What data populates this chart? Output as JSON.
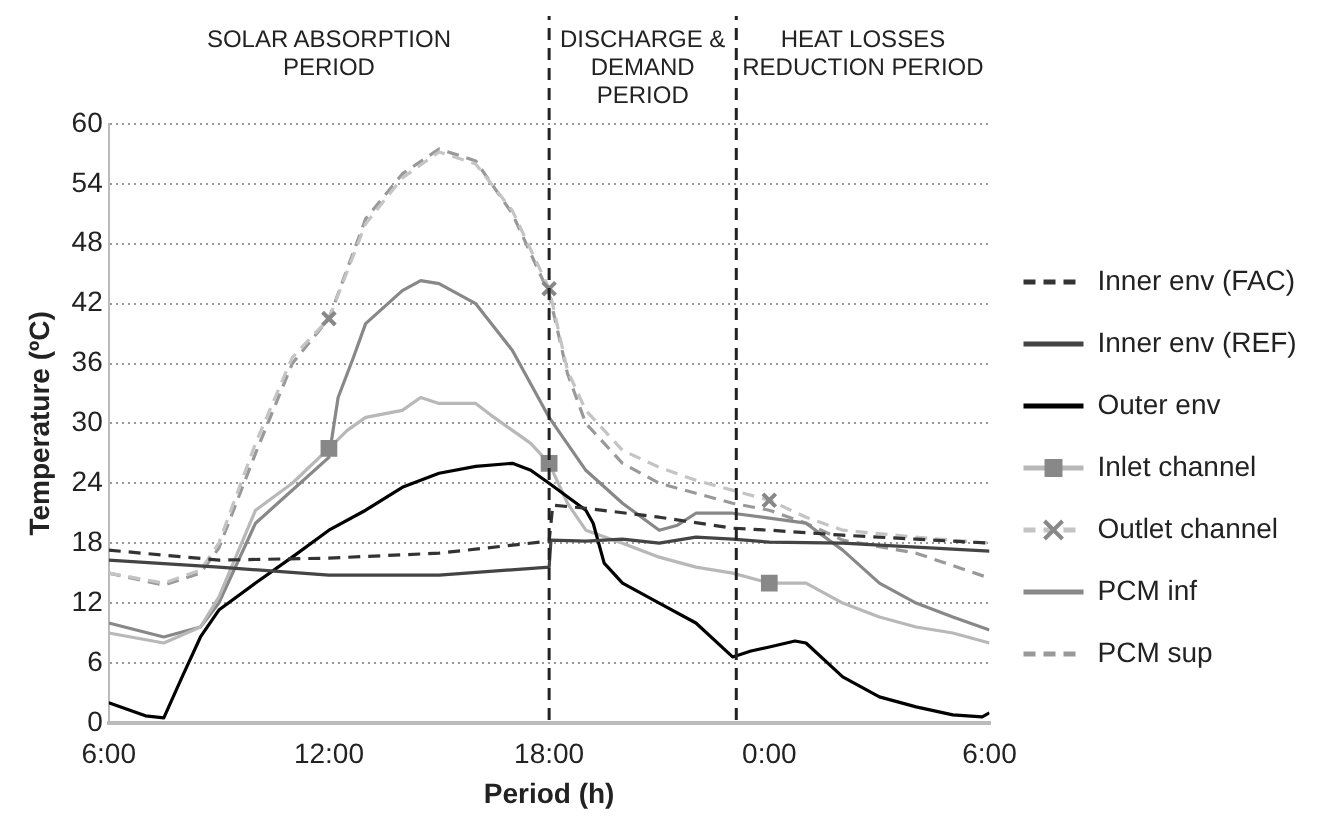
{
  "chart_data": {
    "type": "line",
    "xlabel": "Period (h)",
    "ylabel": "Temperature (ºC)",
    "annotations": [
      "SOLAR ABSORPTION PERIOD",
      "DISCHARGE & DEMAND PERIOD",
      "HEAT LOSSES REDUCTION PERIOD"
    ],
    "xlim": [
      "--01-01T06:00",
      "--01-02T06:00"
    ],
    "xticks": [
      {
        "value": "--01-01T06:00",
        "label": "6:00"
      },
      {
        "value": "--01-01T12:00",
        "label": "12:00"
      },
      {
        "value": "--01-01T18:00",
        "label": "18:00"
      },
      {
        "value": "--01-02T00:00",
        "label": "0:00"
      },
      {
        "value": "--01-02T06:00",
        "label": "6:00"
      }
    ],
    "ylim": [
      0,
      60
    ],
    "yticks": [
      0,
      6,
      12,
      18,
      24,
      30,
      36,
      42,
      48,
      54,
      60
    ],
    "grid": "y",
    "legend": "right",
    "ref_lines": [
      {
        "axis": "x",
        "value": "--01-01T18:00",
        "color": "#222222",
        "line_style": "dashed"
      },
      {
        "axis": "x",
        "value": "--01-01T23:06",
        "color": "#222222",
        "line_style": "dashed"
      }
    ],
    "series": [
      {
        "name": "Inner env (FAC)",
        "color": "#333333",
        "line_style": "dashed",
        "x": [
          "--01-01T06:00",
          "--01-01T09:00",
          "--01-01T12:00",
          "--01-01T15:00",
          "--01-01T18:00",
          "--01-01T18:06",
          "--01-01T19:00",
          "--01-01T21:00",
          "--01-01T23:00",
          "--01-02T00:00",
          "--01-02T02:00",
          "--01-02T04:00",
          "--01-02T06:00"
        ],
        "values": [
          17.3,
          16.3,
          16.5,
          17,
          18.2,
          21.8,
          21.5,
          20.6,
          19.5,
          19.3,
          18.8,
          18.4,
          18
        ]
      },
      {
        "name": "Inner env (REF)",
        "color": "#444444",
        "line_style": "solid",
        "x": [
          "--01-01T06:00",
          "--01-01T09:00",
          "--01-01T12:00",
          "--01-01T15:00",
          "--01-01T18:00",
          "--01-01T18:03",
          "--01-01T19:00",
          "--01-01T20:00",
          "--01-01T21:00",
          "--01-01T22:00",
          "--01-01T23:00",
          "--01-02T00:00",
          "--01-02T02:00",
          "--01-02T04:00",
          "--01-02T06:00"
        ],
        "values": [
          16.3,
          15.6,
          14.8,
          14.8,
          15.6,
          18.3,
          18.2,
          18.4,
          18,
          18.6,
          18.4,
          18.1,
          18,
          17.6,
          17.2
        ]
      },
      {
        "name": "Outer env",
        "color": "#000000",
        "line_style": "solid",
        "x": [
          "--01-01T06:00",
          "--01-01T07:00",
          "--01-01T07:30",
          "--01-01T08:00",
          "--01-01T08:30",
          "--01-01T09:00",
          "--01-01T10:00",
          "--01-01T11:00",
          "--01-01T12:00",
          "--01-01T13:00",
          "--01-01T14:00",
          "--01-01T15:00",
          "--01-01T16:00",
          "--01-01T17:00",
          "--01-01T17:30",
          "--01-01T18:00",
          "--01-01T19:00",
          "--01-01T19:12",
          "--01-01T19:30",
          "--01-01T20:00",
          "--01-01T21:00",
          "--01-01T22:00",
          "--01-01T23:00",
          "--01-01T23:30",
          "--01-02T00:00",
          "--01-02T00:42",
          "--01-02T01:00",
          "--01-02T02:00",
          "--01-02T03:00",
          "--01-02T04:00",
          "--01-02T05:00",
          "--01-02T05:48",
          "--01-02T06:00"
        ],
        "values": [
          2,
          0.7,
          0.5,
          4.6,
          8.6,
          11.3,
          14,
          16.6,
          19.3,
          21.3,
          23.6,
          25,
          25.7,
          26,
          25.3,
          24,
          21.3,
          20,
          16,
          14,
          12,
          10,
          6.6,
          7.2,
          7.6,
          8.2,
          8,
          4.6,
          2.6,
          1.6,
          0.8,
          0.6,
          1
        ]
      },
      {
        "type": "scatter",
        "color": "#888888",
        "marker": "square",
        "x": [
          "--01-01T12:00",
          "--01-01T18:00",
          "--01-02T00:00"
        ],
        "values": [
          27.5,
          26,
          14
        ]
      },
      {
        "type": "scatter",
        "color": "#888888",
        "marker": "cross",
        "x": [
          "--01-01T12:00",
          "--01-01T18:00",
          "--01-02T00:00"
        ],
        "values": [
          40.5,
          43.5,
          22.3
        ]
      },
      {
        "name": "Inlet channel",
        "color": "#b8b8b8",
        "line_style": "solid",
        "x": [
          "--01-01T06:00",
          "--01-01T07:30",
          "--01-01T08:30",
          "--01-01T09:00",
          "--01-01T10:00",
          "--01-01T11:00",
          "--01-01T12:00",
          "--01-01T12:30",
          "--01-01T13:00",
          "--01-01T14:00",
          "--01-01T14:30",
          "--01-01T15:00",
          "--01-01T16:00",
          "--01-01T16:30",
          "--01-01T17:00",
          "--01-01T17:30",
          "--01-01T18:00",
          "--01-01T18:30",
          "--01-01T19:00",
          "--01-01T20:00",
          "--01-01T21:00",
          "--01-01T22:00",
          "--01-01T23:00",
          "--01-02T00:00",
          "--01-02T01:00",
          "--01-02T02:00",
          "--01-02T03:00",
          "--01-02T04:00",
          "--01-02T05:00",
          "--01-02T06:00"
        ],
        "values": [
          9,
          8,
          9.6,
          12.6,
          21.3,
          24,
          27.5,
          29.3,
          30.6,
          31.3,
          32.6,
          32,
          32,
          30.6,
          29.3,
          28,
          26,
          22,
          19.3,
          18,
          16.6,
          15.6,
          15,
          14,
          14,
          12,
          10.6,
          9.6,
          9,
          8
        ]
      },
      {
        "name": "Outlet channel",
        "color": "#c4c4c4",
        "line_style": "dashed",
        "x": [
          "--01-01T06:00",
          "--01-01T07:30",
          "--01-01T08:30",
          "--01-01T09:00",
          "--01-01T10:00",
          "--01-01T11:00",
          "--01-01T12:00",
          "--01-01T13:00",
          "--01-01T14:00",
          "--01-01T15:00",
          "--01-01T16:00",
          "--01-01T17:00",
          "--01-01T18:00",
          "--01-01T18:30",
          "--01-01T19:00",
          "--01-01T20:00",
          "--01-01T21:00",
          "--01-01T22:00",
          "--01-02T00:00",
          "--01-02T01:00",
          "--01-02T02:00",
          "--01-02T04:00",
          "--01-02T06:00"
        ],
        "values": [
          15,
          14,
          15.3,
          18,
          28,
          36.6,
          40.5,
          50,
          54.6,
          57.2,
          56,
          51.3,
          43.5,
          35.3,
          31.3,
          27.3,
          25.6,
          24.3,
          22.3,
          20.6,
          19.3,
          18.6,
          18
        ]
      },
      {
        "name": "PCM inf",
        "color": "#888888",
        "line_style": "solid",
        "x": [
          "--01-01T06:00",
          "--01-01T07:30",
          "--01-01T08:30",
          "--01-01T09:00",
          "--01-01T10:00",
          "--01-01T11:00",
          "--01-01T12:00",
          "--01-01T12:15",
          "--01-01T12:40",
          "--01-01T13:00",
          "--01-01T14:00",
          "--01-01T14:30",
          "--01-01T15:00",
          "--01-01T16:00",
          "--01-01T17:00",
          "--01-01T18:00",
          "--01-01T19:00",
          "--01-01T20:00",
          "--01-01T21:00",
          "--01-01T21:30",
          "--01-01T22:00",
          "--01-01T23:00",
          "--01-02T00:00",
          "--01-02T01:00",
          "--01-02T02:00",
          "--01-02T03:00",
          "--01-02T04:00",
          "--01-02T05:00",
          "--01-02T06:00"
        ],
        "values": [
          10,
          8.6,
          9.6,
          12,
          20,
          23.3,
          26.6,
          32.6,
          36.6,
          40,
          43.3,
          44.3,
          44,
          42,
          37.3,
          30.6,
          25.3,
          22,
          19.3,
          19.8,
          21,
          21,
          20.5,
          20,
          17.3,
          14,
          12,
          10.6,
          9.3
        ]
      },
      {
        "name": "PCM sup",
        "color": "#999999",
        "line_style": "dashed",
        "x": [
          "--01-01T06:00",
          "--01-01T07:30",
          "--01-01T08:30",
          "--01-01T09:00",
          "--01-01T10:00",
          "--01-01T11:00",
          "--01-01T12:00",
          "--01-01T13:00",
          "--01-01T14:00",
          "--01-01T15:00",
          "--01-01T16:00",
          "--01-01T17:00",
          "--01-01T18:00",
          "--01-01T18:30",
          "--01-01T19:00",
          "--01-01T20:00",
          "--01-01T21:00",
          "--01-01T22:00",
          "--01-01T23:00",
          "--01-02T00:00",
          "--01-02T01:00",
          "--01-02T02:00",
          "--01-02T04:00",
          "--01-02T06:00"
        ],
        "values": [
          15,
          13.8,
          15,
          17.5,
          27,
          36,
          40.5,
          50.5,
          55,
          57.5,
          56.3,
          51,
          43,
          35,
          30,
          26,
          24,
          23,
          22,
          21.3,
          20,
          18.3,
          17,
          14.5
        ]
      }
    ]
  }
}
